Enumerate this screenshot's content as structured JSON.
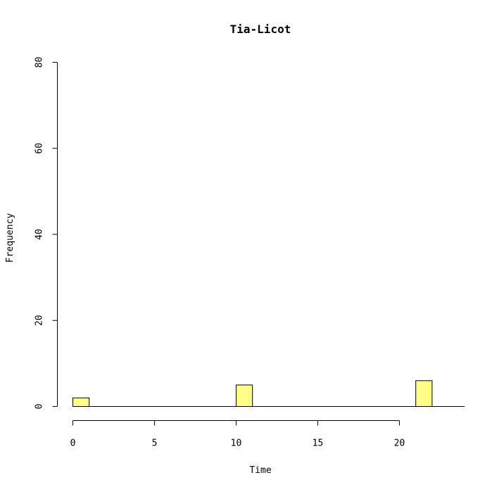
{
  "chart_data": {
    "type": "bar",
    "title": "Tia-Licot",
    "xlabel": "Time",
    "ylabel": "Frequency",
    "xlim": [
      0,
      24
    ],
    "ylim": [
      0,
      80
    ],
    "x_ticks": [
      0,
      5,
      10,
      15,
      20
    ],
    "y_ticks": [
      0,
      20,
      40,
      60,
      80
    ],
    "bin_width": 1,
    "bins": [
      {
        "start": 0,
        "end": 1,
        "value": 2
      },
      {
        "start": 10,
        "end": 11,
        "value": 5
      },
      {
        "start": 21,
        "end": 22,
        "value": 6
      }
    ],
    "grid": false,
    "bar_color": "#ffff88"
  }
}
